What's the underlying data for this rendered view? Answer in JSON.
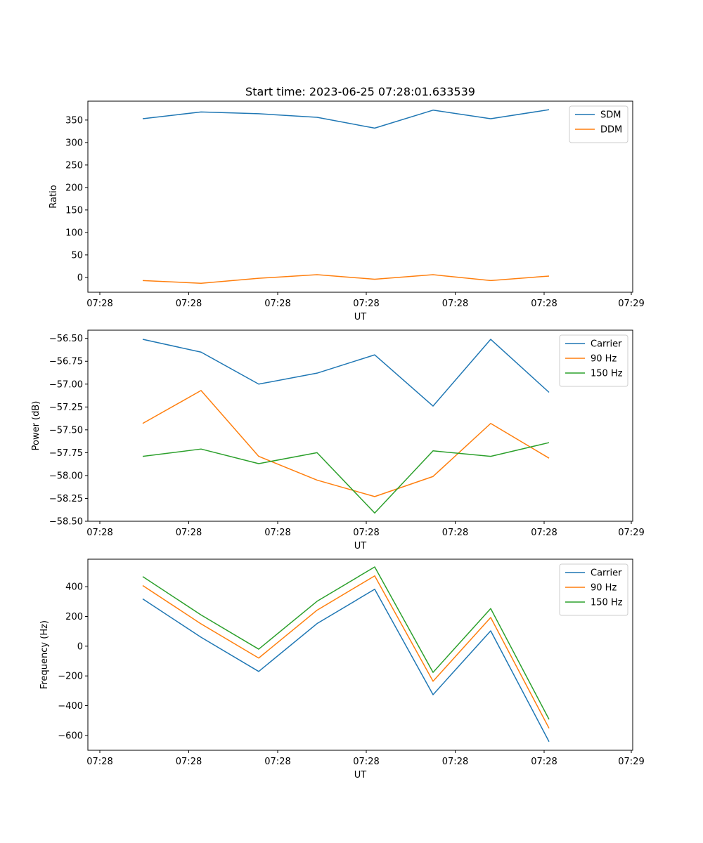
{
  "title": "Start time: 2023-06-25 07:28:01.633539",
  "chart_data": [
    {
      "type": "line",
      "xlabel": "UT",
      "ylabel": "Ratio",
      "x_tick_labels": [
        "07:28",
        "07:28",
        "07:28",
        "07:28",
        "07:28",
        "07:28",
        "07:29"
      ],
      "yticks": [
        0,
        50,
        100,
        150,
        200,
        250,
        300,
        350
      ],
      "ylim": [
        -33,
        392
      ],
      "legend_position": "upper right",
      "grid": false,
      "series": [
        {
          "name": "SDM",
          "color": "#1f77b4",
          "values": [
            353,
            368,
            364,
            356,
            332,
            372,
            353,
            373
          ]
        },
        {
          "name": "DDM",
          "color": "#ff7f0e",
          "values": [
            -7,
            -13,
            -2,
            6,
            -4,
            6,
            -7,
            3
          ]
        }
      ]
    },
    {
      "type": "line",
      "xlabel": "UT",
      "ylabel": "Power (dB)",
      "x_tick_labels": [
        "07:28",
        "07:28",
        "07:28",
        "07:28",
        "07:28",
        "07:28",
        "07:29"
      ],
      "yticks": [
        -58.5,
        -58.25,
        -58.0,
        -57.75,
        -57.5,
        -57.25,
        -57.0,
        -56.75,
        -56.5
      ],
      "ytick_labels": [
        "−58.50",
        "−58.25",
        "−58.00",
        "−57.75",
        "−57.50",
        "−57.25",
        "−57.00",
        "−56.75",
        "−56.50"
      ],
      "ylim": [
        -58.5,
        -56.41
      ],
      "legend_position": "upper right",
      "grid": false,
      "series": [
        {
          "name": "Carrier",
          "color": "#1f77b4",
          "values": [
            -56.51,
            -56.65,
            -57.0,
            -56.88,
            -56.68,
            -57.24,
            -56.51,
            -57.09
          ]
        },
        {
          "name": "90 Hz",
          "color": "#ff7f0e",
          "values": [
            -57.43,
            -57.07,
            -57.79,
            -58.05,
            -58.23,
            -58.01,
            -57.43,
            -57.81
          ]
        },
        {
          "name": "150 Hz",
          "color": "#2ca02c",
          "values": [
            -57.79,
            -57.71,
            -57.87,
            -57.75,
            -58.41,
            -57.73,
            -57.79,
            -57.64
          ]
        }
      ]
    },
    {
      "type": "line",
      "xlabel": "UT",
      "ylabel": "Frequency (Hz)",
      "x_tick_labels": [
        "07:28",
        "07:28",
        "07:28",
        "07:28",
        "07:28",
        "07:28",
        "07:29"
      ],
      "yticks": [
        -600,
        -400,
        -200,
        0,
        200,
        400
      ],
      "ytick_labels": [
        "−600",
        "−400",
        "−200",
        "0",
        "200",
        "400"
      ],
      "ylim": [
        -700,
        585
      ],
      "legend_position": "upper right",
      "grid": false,
      "series": [
        {
          "name": "Carrier",
          "color": "#1f77b4",
          "values": [
            318,
            60,
            -170,
            152,
            383,
            -326,
            103,
            -642
          ]
        },
        {
          "name": "90 Hz",
          "color": "#ff7f0e",
          "values": [
            408,
            150,
            -80,
            242,
            473,
            -236,
            193,
            -552
          ]
        },
        {
          "name": "150 Hz",
          "color": "#2ca02c",
          "values": [
            468,
            210,
            -20,
            302,
            533,
            -176,
            253,
            -492
          ]
        }
      ]
    }
  ]
}
